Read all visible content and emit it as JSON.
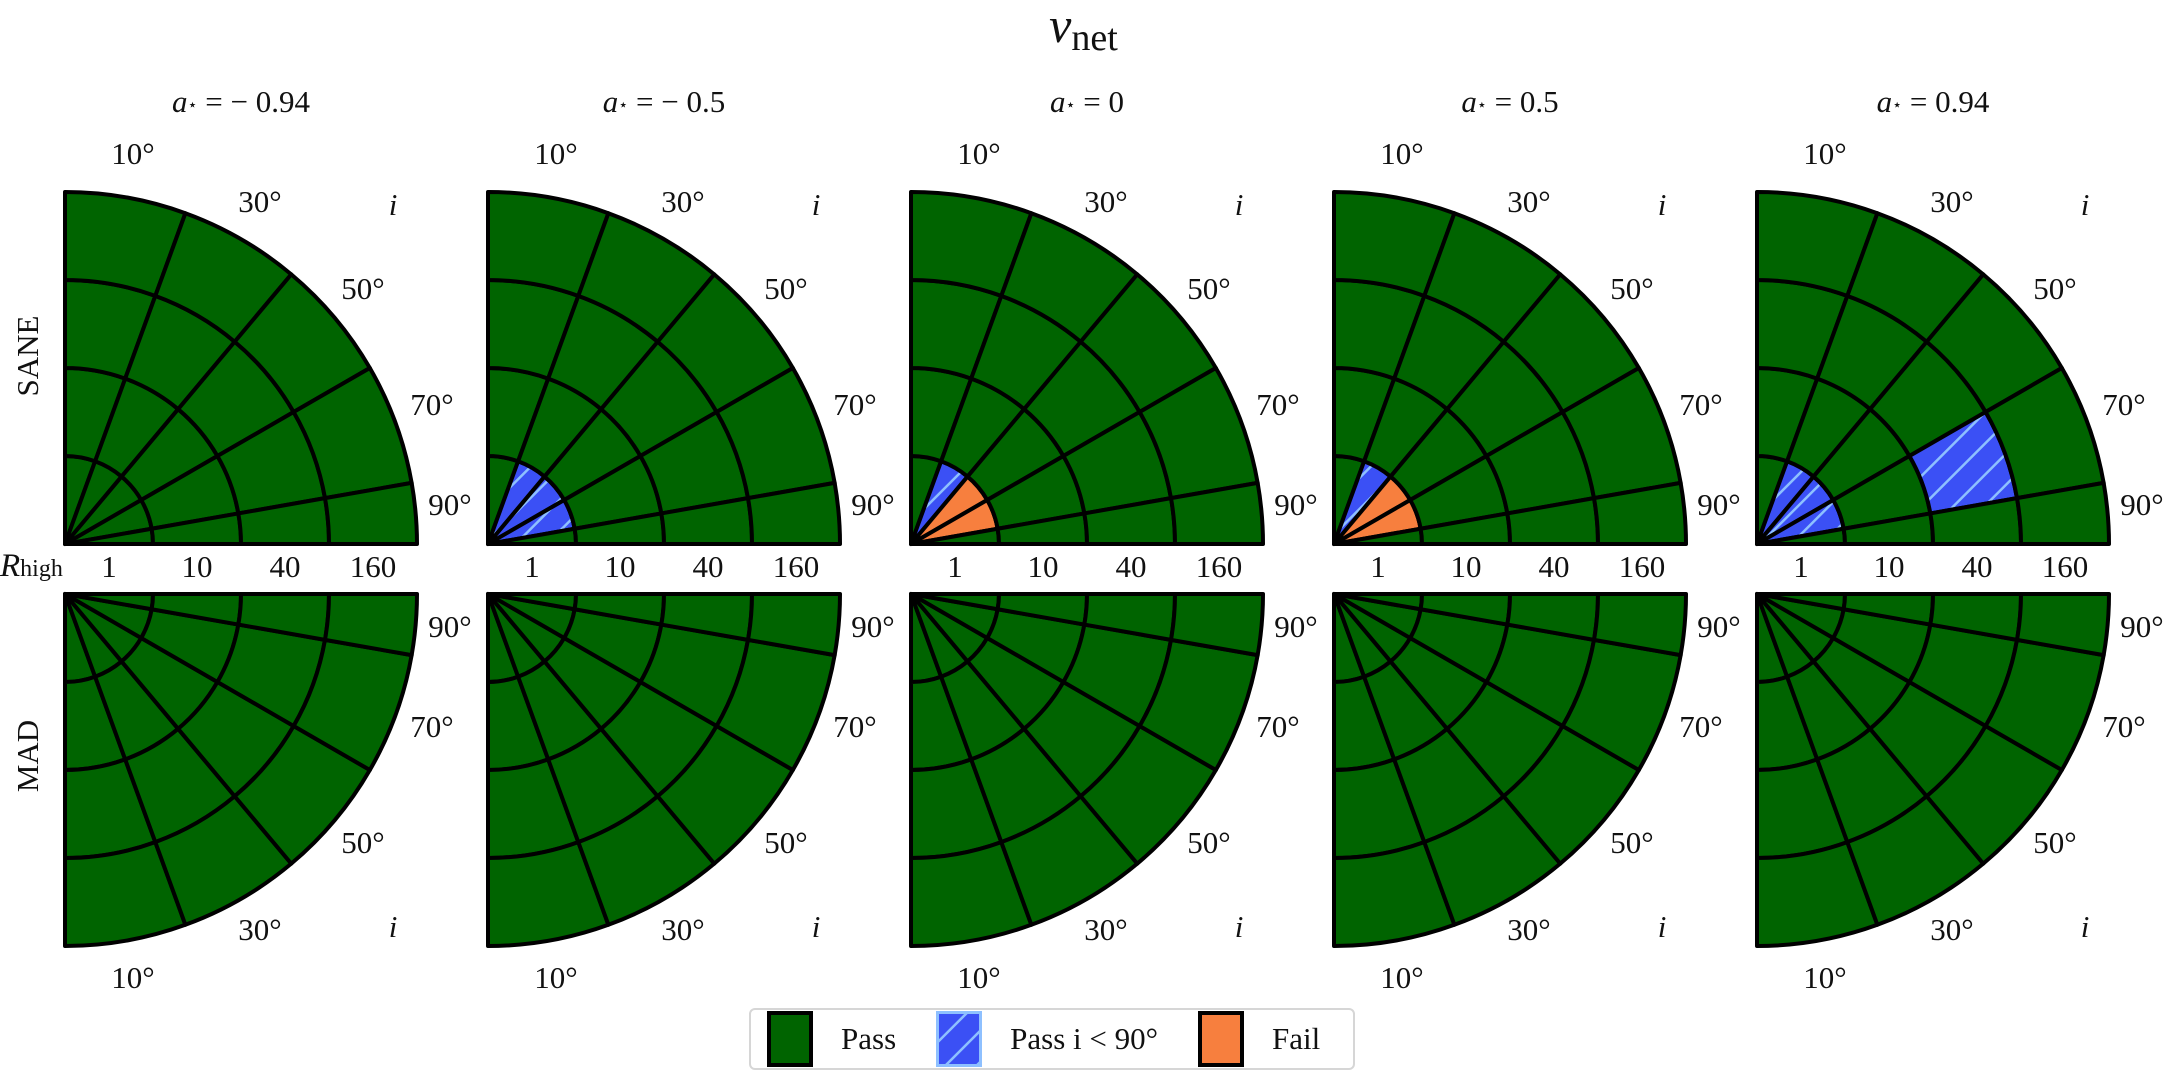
{
  "title": {
    "symbol": "ν",
    "subscript": "net"
  },
  "legend": {
    "items": [
      {
        "key": "pass",
        "label": "Pass",
        "color": "#006400",
        "border": "#000000",
        "hatch": false
      },
      {
        "key": "pass_i_lt_90",
        "label": "Pass i < 90°",
        "color": "#3b50f5",
        "border": "#8ec0ff",
        "hatch": true
      },
      {
        "key": "fail",
        "label": "Fail",
        "color": "#f77f3e",
        "border": "#000000",
        "hatch": false
      }
    ]
  },
  "colors": {
    "pass": "#006400",
    "pass_i_lt_90": "#3b50f5",
    "hatch_line": "#8ec0ff",
    "fail": "#f77f3e",
    "grid": "#000000"
  },
  "row_labels": [
    "SANE",
    "MAD"
  ],
  "radial_axis_label": {
    "symbol": "R",
    "subscript": "high"
  },
  "chart_data": {
    "type": "heatmap",
    "subtype": "polar-quadrant-grid",
    "title": "ν_net",
    "legend_position": "bottom center",
    "columns": [
      {
        "label_var": "a",
        "label_eq": "= − 0.94",
        "spin": -0.94
      },
      {
        "label_var": "a",
        "label_eq": "= − 0.5",
        "spin": -0.5
      },
      {
        "label_var": "a",
        "label_eq": "= 0",
        "spin": 0
      },
      {
        "label_var": "a",
        "label_eq": "= 0.5",
        "spin": 0.5
      },
      {
        "label_var": "a",
        "label_eq": "= 0.94",
        "spin": 0.94
      }
    ],
    "rows": [
      "SANE",
      "MAD"
    ],
    "angular_axis": {
      "label": "i",
      "ticks": [
        "10°",
        "30°",
        "50°",
        "70°",
        "90°"
      ],
      "bin_edges_deg": [
        0,
        20,
        40,
        60,
        80,
        90
      ]
    },
    "radial_axis": {
      "label": "R_high",
      "ticks": [
        "1",
        "10",
        "40",
        "160"
      ]
    },
    "cell_status_legend": {
      "P": "Pass",
      "H": "Pass i < 90°",
      "F": "Fail"
    },
    "grid_note": "status[row][col][ring][wedge]; rings = R_high [1,10,40,160]; wedges = i [10,30,50,70,90]",
    "status": {
      "SANE": [
        [
          [
            "P",
            "P",
            "P",
            "P",
            "P"
          ],
          [
            "P",
            "P",
            "P",
            "P",
            "P"
          ],
          [
            "P",
            "P",
            "P",
            "P",
            "P"
          ],
          [
            "P",
            "P",
            "P",
            "P",
            "P"
          ]
        ],
        [
          [
            "P",
            "H",
            "H",
            "H",
            "P"
          ],
          [
            "P",
            "P",
            "P",
            "P",
            "P"
          ],
          [
            "P",
            "P",
            "P",
            "P",
            "P"
          ],
          [
            "P",
            "P",
            "P",
            "P",
            "P"
          ]
        ],
        [
          [
            "P",
            "H",
            "F",
            "F",
            "P"
          ],
          [
            "P",
            "P",
            "P",
            "P",
            "P"
          ],
          [
            "P",
            "P",
            "P",
            "P",
            "P"
          ],
          [
            "P",
            "P",
            "P",
            "P",
            "P"
          ]
        ],
        [
          [
            "P",
            "H",
            "F",
            "F",
            "P"
          ],
          [
            "P",
            "P",
            "P",
            "P",
            "P"
          ],
          [
            "P",
            "P",
            "P",
            "P",
            "P"
          ],
          [
            "P",
            "P",
            "P",
            "P",
            "P"
          ]
        ],
        [
          [
            "P",
            "H",
            "H",
            "H",
            "P"
          ],
          [
            "P",
            "P",
            "P",
            "P",
            "P"
          ],
          [
            "P",
            "P",
            "P",
            "H",
            "P"
          ],
          [
            "P",
            "P",
            "P",
            "P",
            "P"
          ]
        ]
      ],
      "MAD": [
        [
          [
            "P",
            "P",
            "P",
            "P",
            "P"
          ],
          [
            "P",
            "P",
            "P",
            "P",
            "P"
          ],
          [
            "P",
            "P",
            "P",
            "P",
            "P"
          ],
          [
            "P",
            "P",
            "P",
            "P",
            "P"
          ]
        ],
        [
          [
            "P",
            "P",
            "P",
            "P",
            "P"
          ],
          [
            "P",
            "P",
            "P",
            "P",
            "P"
          ],
          [
            "P",
            "P",
            "P",
            "P",
            "P"
          ],
          [
            "P",
            "P",
            "P",
            "P",
            "P"
          ]
        ],
        [
          [
            "P",
            "P",
            "P",
            "P",
            "P"
          ],
          [
            "P",
            "P",
            "P",
            "P",
            "P"
          ],
          [
            "P",
            "P",
            "P",
            "P",
            "P"
          ],
          [
            "P",
            "P",
            "P",
            "P",
            "P"
          ]
        ],
        [
          [
            "P",
            "P",
            "P",
            "P",
            "P"
          ],
          [
            "P",
            "P",
            "P",
            "P",
            "P"
          ],
          [
            "P",
            "P",
            "P",
            "P",
            "P"
          ],
          [
            "P",
            "P",
            "P",
            "P",
            "P"
          ]
        ],
        [
          [
            "P",
            "P",
            "P",
            "P",
            "P"
          ],
          [
            "P",
            "P",
            "P",
            "P",
            "P"
          ],
          [
            "P",
            "P",
            "P",
            "P",
            "P"
          ],
          [
            "P",
            "P",
            "P",
            "P",
            "P"
          ]
        ]
      ]
    }
  }
}
